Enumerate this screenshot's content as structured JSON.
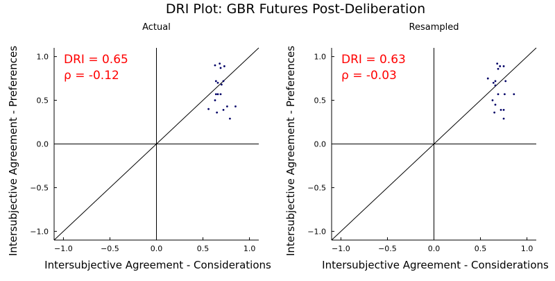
{
  "figure": {
    "title": "DRI Plot: GBR Futures Post-Deliberation"
  },
  "colors": {
    "axis": "#000000",
    "point": "#000066",
    "annotation": "#ff0000",
    "background": "#ffffff"
  },
  "chart_data": [
    {
      "type": "scatter",
      "title": "Actual",
      "xlabel": "Intersubjective Agreement - Considerations",
      "ylabel": "Intersubjective Agreement - Preferences",
      "xlim": [
        -1.1,
        1.1
      ],
      "ylim": [
        -1.1,
        1.1
      ],
      "xticks": [
        -1.0,
        -0.5,
        0.0,
        0.5,
        1.0
      ],
      "yticks": [
        -1.0,
        -0.5,
        0.0,
        0.5,
        1.0
      ],
      "xtick_labels": [
        "−1.0",
        "−0.5",
        "0.0",
        "0.5",
        "1.0"
      ],
      "ytick_labels": [
        "−1.0",
        "−0.5",
        "0.0",
        "0.5",
        "1.0"
      ],
      "grid": false,
      "reference_lines": [
        "x = 0",
        "y = 0",
        "y = x"
      ],
      "annotations": [
        "DRI = 0.65",
        "ρ = -0.12"
      ],
      "points": [
        {
          "x": 0.63,
          "y": 0.9
        },
        {
          "x": 0.68,
          "y": 0.92
        },
        {
          "x": 0.73,
          "y": 0.89
        },
        {
          "x": 0.69,
          "y": 0.87
        },
        {
          "x": 0.64,
          "y": 0.72
        },
        {
          "x": 0.72,
          "y": 0.72
        },
        {
          "x": 0.66,
          "y": 0.7
        },
        {
          "x": 0.7,
          "y": 0.68
        },
        {
          "x": 0.64,
          "y": 0.57
        },
        {
          "x": 0.66,
          "y": 0.57
        },
        {
          "x": 0.69,
          "y": 0.57
        },
        {
          "x": 0.63,
          "y": 0.5
        },
        {
          "x": 0.76,
          "y": 0.43
        },
        {
          "x": 0.85,
          "y": 0.43
        },
        {
          "x": 0.56,
          "y": 0.4
        },
        {
          "x": 0.72,
          "y": 0.39
        },
        {
          "x": 0.65,
          "y": 0.36
        },
        {
          "x": 0.79,
          "y": 0.29
        }
      ]
    },
    {
      "type": "scatter",
      "title": "Resampled",
      "xlabel": "Intersubjective Agreement - Considerations",
      "ylabel": "Intersubjective Agreement - Preferences",
      "xlim": [
        -1.1,
        1.1
      ],
      "ylim": [
        -1.1,
        1.1
      ],
      "xticks": [
        -1.0,
        -0.5,
        0.0,
        0.5,
        1.0
      ],
      "yticks": [
        -1.0,
        -0.5,
        0.0,
        0.5,
        1.0
      ],
      "xtick_labels": [
        "−1.0",
        "−0.5",
        "0.0",
        "0.5",
        "1.0"
      ],
      "ytick_labels": [
        "−1.0",
        "−0.5",
        "0.0",
        "0.5",
        "1.0"
      ],
      "grid": false,
      "reference_lines": [
        "x = 0",
        "y = 0",
        "y = x"
      ],
      "annotations": [
        "DRI = 0.63",
        "ρ = -0.03"
      ],
      "points": [
        {
          "x": 0.68,
          "y": 0.92
        },
        {
          "x": 0.71,
          "y": 0.89
        },
        {
          "x": 0.75,
          "y": 0.89
        },
        {
          "x": 0.69,
          "y": 0.86
        },
        {
          "x": 0.58,
          "y": 0.75
        },
        {
          "x": 0.66,
          "y": 0.72
        },
        {
          "x": 0.77,
          "y": 0.72
        },
        {
          "x": 0.64,
          "y": 0.7
        },
        {
          "x": 0.66,
          "y": 0.67
        },
        {
          "x": 0.69,
          "y": 0.57
        },
        {
          "x": 0.76,
          "y": 0.57
        },
        {
          "x": 0.86,
          "y": 0.57
        },
        {
          "x": 0.63,
          "y": 0.5
        },
        {
          "x": 0.66,
          "y": 0.45
        },
        {
          "x": 0.72,
          "y": 0.39
        },
        {
          "x": 0.75,
          "y": 0.39
        },
        {
          "x": 0.65,
          "y": 0.36
        },
        {
          "x": 0.75,
          "y": 0.29
        }
      ]
    }
  ]
}
